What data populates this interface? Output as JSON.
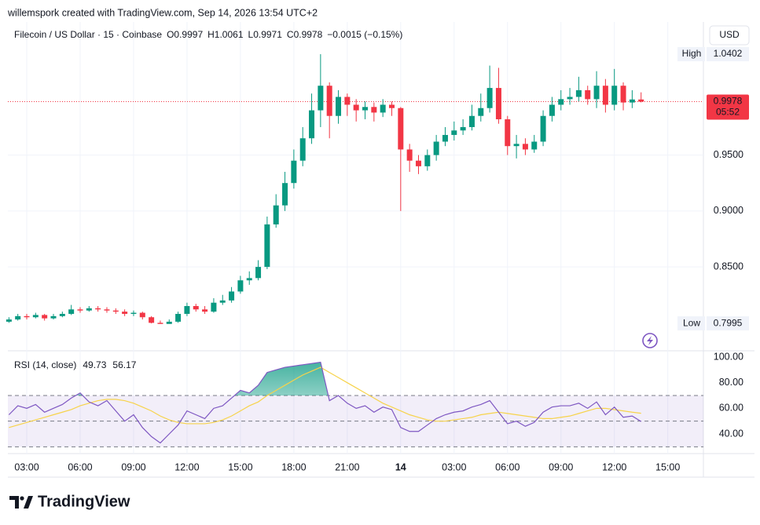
{
  "header": {
    "attribution": "willemspork created with TradingView.com, Sep 14, 2026 13:54 UTC+2",
    "logo": "TradingView"
  },
  "chart_data": [
    {
      "type": "candlestick",
      "title": "Filecoin / US Dollar · 15 · Coinbase",
      "currency": "USD",
      "ohlc_labels": [
        "O",
        "H",
        "L",
        "C"
      ],
      "change": "−0.0015 (−0.15%)",
      "high_label": "High",
      "low_label": "Low",
      "countdown": "05:52",
      "up_color": "#089981",
      "down_color": "#f23645",
      "open": [
        0.801,
        0.803,
        0.806,
        0.805,
        0.807,
        0.804,
        0.806,
        0.808,
        0.812,
        0.811,
        0.813,
        0.812,
        0.811,
        0.81,
        0.808,
        0.809,
        0.805,
        0.8,
        0.799,
        0.801,
        0.808,
        0.815,
        0.812,
        0.81,
        0.818,
        0.82,
        0.828,
        0.838,
        0.84,
        0.85,
        0.888,
        0.905,
        0.925,
        0.945,
        0.965,
        0.99,
        1.012,
        0.985,
        1.002,
        0.995,
        0.99,
        0.993,
        0.988,
        0.995,
        0.992,
        0.955,
        0.945,
        0.94,
        0.95,
        0.962,
        0.968,
        0.972,
        0.975,
        0.985,
        0.992,
        1.01,
        0.982,
        0.958,
        0.96,
        0.955,
        0.962,
        0.985,
        0.995,
        1.0,
        1.002,
        1.008,
        1.0,
        1.012,
        0.995,
        1.012,
        0.997,
        0.9997
      ],
      "high": [
        0.805,
        0.808,
        0.808,
        0.809,
        0.808,
        0.808,
        0.81,
        0.816,
        0.814,
        0.815,
        0.815,
        0.814,
        0.813,
        0.812,
        0.811,
        0.81,
        0.806,
        0.802,
        0.803,
        0.81,
        0.818,
        0.817,
        0.815,
        0.822,
        0.825,
        0.832,
        0.842,
        0.846,
        0.856,
        0.895,
        0.915,
        0.935,
        0.955,
        0.975,
        1.005,
        1.0402,
        1.015,
        1.008,
        1.005,
        1.0,
        0.998,
        0.997,
        1.0,
        0.998,
        0.993,
        0.96,
        0.95,
        0.955,
        0.968,
        0.975,
        0.98,
        0.982,
        0.995,
        1.005,
        1.03,
        1.028,
        0.985,
        0.968,
        0.965,
        0.968,
        0.99,
        1.002,
        1.008,
        1.01,
        1.02,
        1.012,
        1.025,
        1.018,
        1.027,
        1.015,
        1.008,
        1.0061
      ],
      "low": [
        0.8,
        0.802,
        0.803,
        0.804,
        0.802,
        0.803,
        0.805,
        0.807,
        0.809,
        0.81,
        0.81,
        0.809,
        0.808,
        0.806,
        0.806,
        0.803,
        0.7995,
        0.7995,
        0.7998,
        0.8,
        0.806,
        0.81,
        0.808,
        0.809,
        0.816,
        0.818,
        0.826,
        0.834,
        0.838,
        0.848,
        0.885,
        0.9,
        0.92,
        0.94,
        0.96,
        0.975,
        0.965,
        0.978,
        0.985,
        0.98,
        0.982,
        0.98,
        0.984,
        0.985,
        0.9,
        0.935,
        0.933,
        0.936,
        0.945,
        0.958,
        0.963,
        0.968,
        0.972,
        0.98,
        0.988,
        0.978,
        0.95,
        0.947,
        0.95,
        0.952,
        0.958,
        0.98,
        0.99,
        0.995,
        0.998,
        0.995,
        0.992,
        0.988,
        0.99,
        0.99,
        0.992,
        0.9971
      ],
      "close": [
        0.803,
        0.806,
        0.805,
        0.807,
        0.804,
        0.806,
        0.808,
        0.812,
        0.811,
        0.813,
        0.812,
        0.811,
        0.81,
        0.808,
        0.809,
        0.805,
        0.8,
        0.799,
        0.801,
        0.808,
        0.815,
        0.812,
        0.81,
        0.818,
        0.82,
        0.828,
        0.838,
        0.84,
        0.85,
        0.888,
        0.905,
        0.925,
        0.945,
        0.965,
        0.99,
        1.012,
        0.985,
        1.002,
        0.995,
        0.99,
        0.993,
        0.988,
        0.995,
        0.992,
        0.955,
        0.945,
        0.94,
        0.95,
        0.962,
        0.968,
        0.972,
        0.975,
        0.985,
        0.992,
        1.01,
        0.982,
        0.958,
        0.96,
        0.955,
        0.962,
        0.985,
        0.995,
        1.0,
        1.002,
        1.008,
        1.0,
        1.012,
        0.995,
        1.012,
        0.997,
        0.9997,
        0.9978
      ],
      "xlim": [
        -0.12,
        78
      ],
      "xticks": [
        {
          "value": 2,
          "label": "03:00"
        },
        {
          "value": 8,
          "label": "06:00"
        },
        {
          "value": 14,
          "label": "09:00"
        },
        {
          "value": 20,
          "label": "12:00"
        },
        {
          "value": 26,
          "label": "15:00"
        },
        {
          "value": 32,
          "label": "18:00"
        },
        {
          "value": 38,
          "label": "21:00"
        },
        {
          "value": 44,
          "label": "14"
        },
        {
          "value": 50,
          "label": "03:00"
        },
        {
          "value": 56,
          "label": "06:00"
        },
        {
          "value": 62,
          "label": "09:00"
        },
        {
          "value": 68,
          "label": "12:00"
        },
        {
          "value": 74,
          "label": "15:00"
        }
      ],
      "ylim": [
        0.775,
        1.069
      ],
      "yticks": [
        {
          "value": 0.95,
          "label": "0.9500"
        },
        {
          "value": 0.9,
          "label": "0.9000"
        },
        {
          "value": 0.85,
          "label": "0.8500"
        }
      ],
      "grid": true
    },
    {
      "type": "rsi",
      "title": "RSI (14, close)",
      "series": [
        {
          "color": "#7e57c2",
          "values": [
            55,
            62,
            60,
            63,
            57,
            60,
            63,
            68,
            72,
            65,
            62,
            66,
            58,
            50,
            55,
            45,
            38,
            33,
            40,
            47,
            58,
            55,
            52,
            60,
            62,
            68,
            74,
            72,
            78,
            88,
            90,
            92,
            93,
            94,
            95,
            96,
            66,
            70,
            64,
            60,
            62,
            57,
            61,
            59,
            45,
            42,
            42,
            47,
            52,
            55,
            57,
            58,
            61,
            63,
            66,
            57,
            48,
            50,
            46,
            49,
            57,
            61,
            62,
            62,
            64,
            60,
            65,
            55,
            61,
            53,
            54,
            49.73
          ]
        },
        {
          "color": "#f7d34a",
          "values": [
            45,
            47,
            49,
            51,
            53,
            55,
            57,
            59,
            62,
            64,
            66,
            67,
            67,
            66,
            64,
            61,
            58,
            54,
            51,
            49,
            48,
            48,
            48,
            49,
            51,
            54,
            58,
            62,
            65,
            70,
            74,
            78,
            82,
            86,
            89,
            92,
            88,
            84,
            80,
            76,
            72,
            68,
            64,
            61,
            58,
            55,
            53,
            51,
            50,
            50,
            51,
            52,
            53,
            55,
            56,
            57,
            56,
            55,
            54,
            53,
            52,
            52,
            53,
            54,
            56,
            58,
            60,
            60,
            59,
            58,
            57,
            56.17
          ]
        }
      ],
      "levels": [
        70,
        50,
        30
      ],
      "xlim": [
        -0.12,
        78
      ],
      "ylim": [
        24.7,
        104.9
      ],
      "yticks": [
        {
          "value": 100,
          "label": "100.00"
        },
        {
          "value": 80,
          "label": "80.00"
        },
        {
          "value": 60,
          "label": "60.00"
        },
        {
          "value": 40,
          "label": "40.00"
        }
      ]
    }
  ]
}
